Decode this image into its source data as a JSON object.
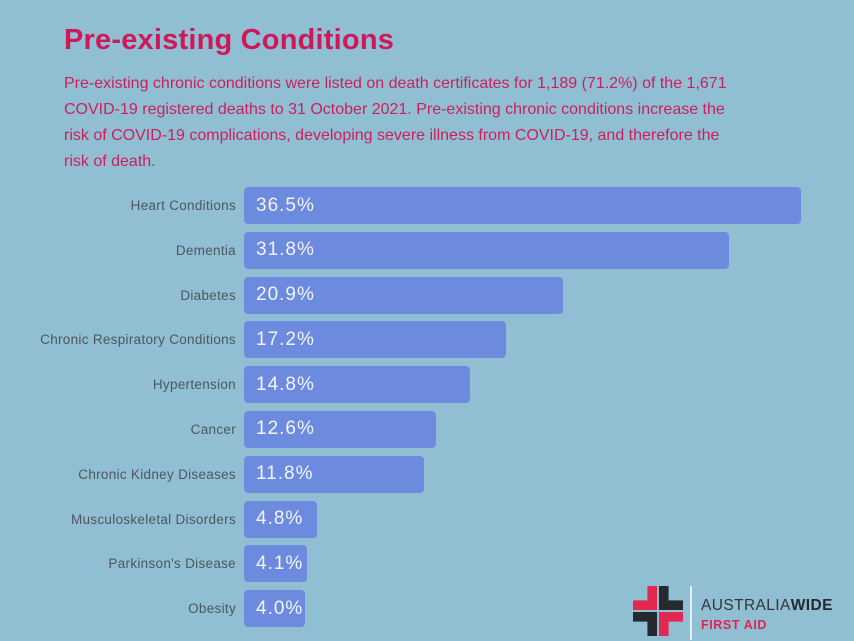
{
  "header": {
    "title": "Pre-existing Conditions",
    "description": "Pre-existing chronic conditions were listed on death certificates for 1,189 (71.2%) of the 1,671 COVID-19 registered deaths to 31 October 2021. Pre-existing chronic conditions increase the risk of COVID-19 complications, developing severe illness from COVID-19, and therefore the risk of death."
  },
  "chart_data": {
    "type": "bar",
    "orientation": "horizontal",
    "title": "Pre-existing Conditions",
    "xlabel": "",
    "ylabel": "",
    "xlim": [
      0,
      36.5
    ],
    "grid": false,
    "legend": false,
    "value_labels_position": "inside-left",
    "categories": [
      "Heart Conditions",
      "Dementia",
      "Diabetes",
      "Chronic Respiratory Conditions",
      "Hypertension",
      "Cancer",
      "Chronic Kidney Diseases",
      "Musculoskeletal Disorders",
      "Parkinson's Disease",
      "Obesity"
    ],
    "values": [
      36.5,
      31.8,
      20.9,
      17.2,
      14.8,
      12.6,
      11.8,
      4.8,
      4.1,
      4.0
    ],
    "value_labels": [
      "36.5%",
      "31.8%",
      "20.9%",
      "17.2%",
      "14.8%",
      "12.6%",
      "11.8%",
      "4.8%",
      "4.1%",
      "4.0%"
    ],
    "bar_color": "#6D8BDE"
  },
  "colors": {
    "background": "#90BFD3",
    "title_text": "#CE185A",
    "body_text": "#CC1F5D",
    "bar_fill": "#6D8BDE",
    "bar_value_text": "#F2F5F8",
    "category_label_text": "#4E565F",
    "logo_black": "#26292E",
    "logo_red": "#E22850"
  },
  "logo": {
    "icon": "first-aid-cross-icon",
    "brand_regular": "AUSTRALIA",
    "brand_bold": "WIDE",
    "tagline": "FIRST AID"
  }
}
